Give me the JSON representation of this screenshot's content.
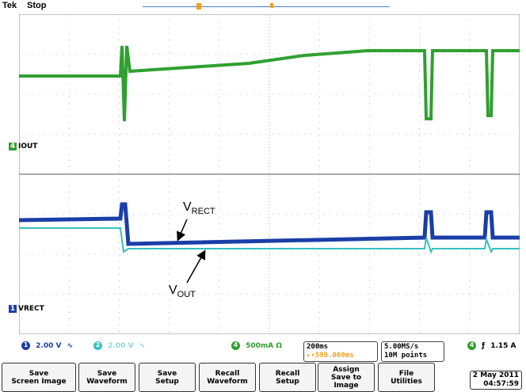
{
  "header": {
    "brand": "Tek",
    "status": "Stop"
  },
  "channels": {
    "ch4": {
      "label": "IOUT",
      "number": "4",
      "color": "#2fa02f"
    },
    "ch1": {
      "label": "VRECT",
      "number": "1",
      "color": "#1a3ea8"
    },
    "ch2": {
      "number": "2",
      "color": "#36c0c0"
    }
  },
  "annotations": {
    "vrect_main": "V",
    "vrect_sub": "RECT",
    "vout_main": "V",
    "vout_sub": "OUT"
  },
  "readouts": {
    "ch1_scale": "2.00 V",
    "ch2_scale": "2.00 V",
    "ch4_scale": "500mA Ω",
    "timebase": "200ms",
    "trigger_delay": "590.000ms",
    "sample_rate": "5.00MS/s",
    "record_length": "10M points",
    "trigger_level": "1.15 A"
  },
  "buttons": [
    {
      "line1": "Save",
      "line2": "Screen Image"
    },
    {
      "line1": "Save",
      "line2": "Waveform"
    },
    {
      "line1": "Save",
      "line2": "Setup"
    },
    {
      "line1": "Recall",
      "line2": "Waveform"
    },
    {
      "line1": "Recall",
      "line2": "Setup"
    },
    {
      "line1": "Assign",
      "line2": "Save to",
      "line3": "Image"
    },
    {
      "line1": "File",
      "line2": "Utilities"
    }
  ],
  "clock": {
    "date": "2 May 2011",
    "time": "04:57:59"
  },
  "colors": {
    "grid": "#8a8a8a",
    "iout": "#2fa02f",
    "vrect": "#1a3ea8",
    "vout": "#36c0c0",
    "trigger": "#f0a020"
  }
}
